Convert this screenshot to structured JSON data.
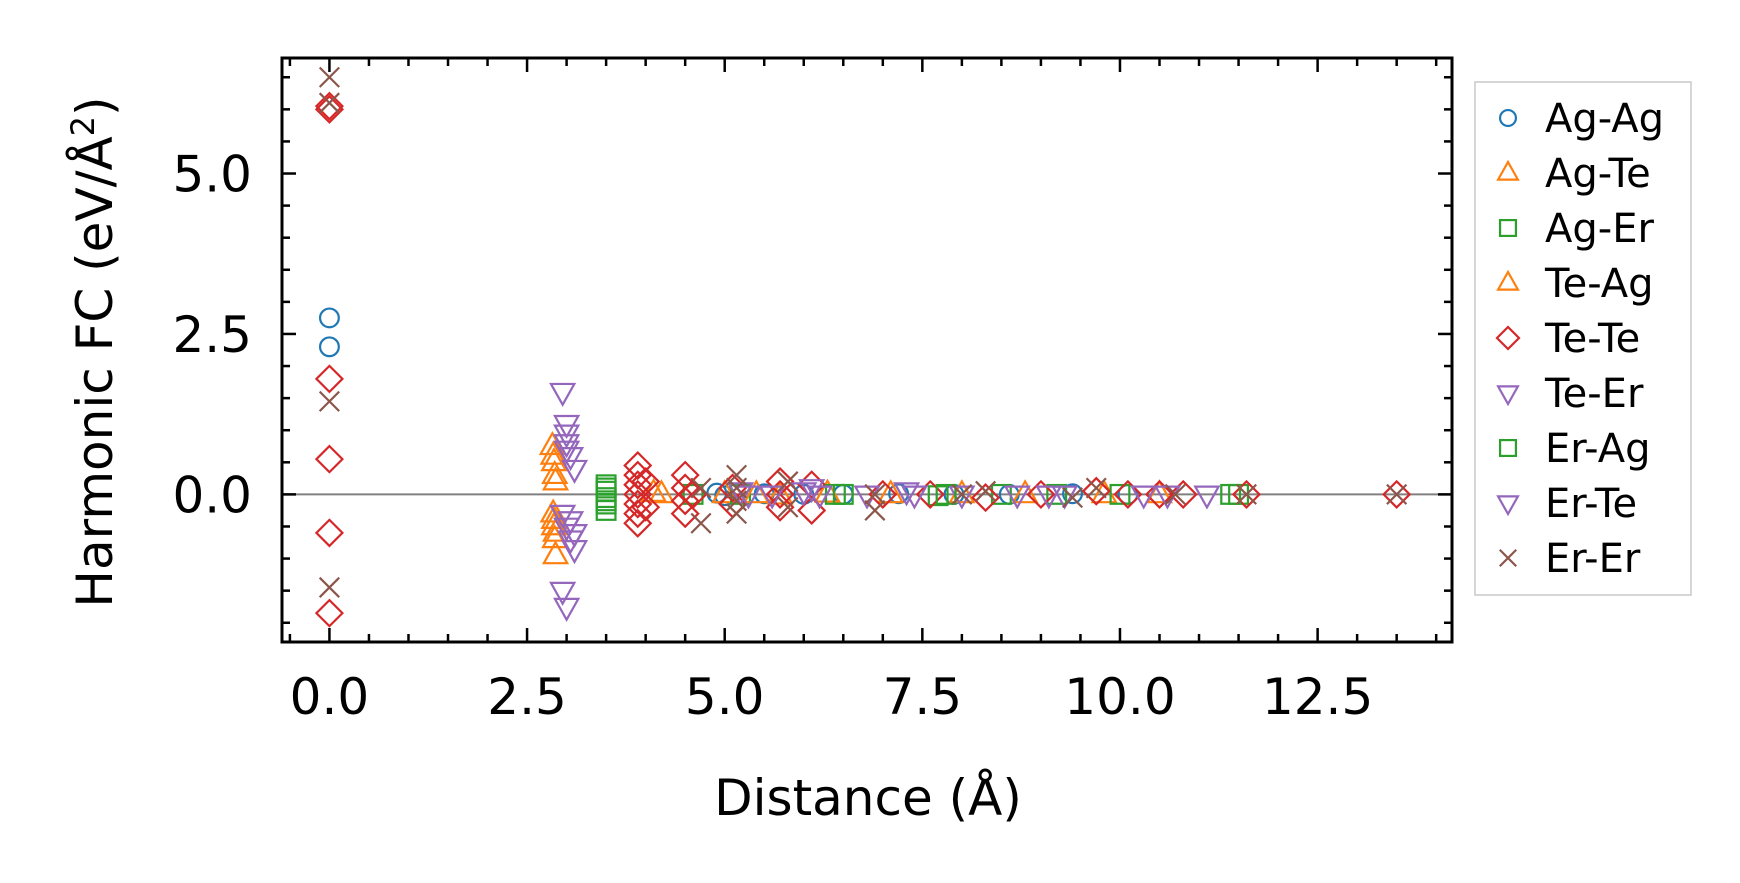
{
  "chart_data": {
    "type": "scatter",
    "title": "",
    "xlabel": "Distance (Å)",
    "ylabel_main": "Harmonic FC (eV/Å",
    "ylabel_sup": "2",
    "ylabel_close": ")",
    "xlim": [
      -0.6,
      14.2
    ],
    "ylim": [
      -2.3,
      6.8
    ],
    "xticks": [
      0.0,
      2.5,
      5.0,
      7.5,
      10.0,
      12.5
    ],
    "xtick_labels": [
      "0.0",
      "2.5",
      "5.0",
      "7.5",
      "10.0",
      "12.5"
    ],
    "yticks": [
      0.0,
      2.5,
      5.0
    ],
    "ytick_labels": [
      "0.0",
      "2.5",
      "5.0"
    ],
    "zero_line": 0,
    "legend_position": "outside-right",
    "series": [
      {
        "name": "Ag-Ag",
        "marker": "circle",
        "color": "#1f77b4",
        "points": [
          [
            0,
            2.75
          ],
          [
            0,
            2.3
          ],
          [
            4.9,
            0.02
          ],
          [
            5.0,
            -0.02
          ],
          [
            5.5,
            0.01
          ],
          [
            6.0,
            0.0
          ],
          [
            6.5,
            0.0
          ],
          [
            7.2,
            0.01
          ],
          [
            7.9,
            0.0
          ],
          [
            8.6,
            0.0
          ],
          [
            9.4,
            0.01
          ],
          [
            10.1,
            0.0
          ]
        ]
      },
      {
        "name": "Ag-Te",
        "marker": "triangle-up",
        "color": "#ff7f0e",
        "points": [
          [
            2.82,
            0.75
          ],
          [
            2.84,
            0.5
          ],
          [
            2.85,
            0.3
          ],
          [
            2.86,
            0.2
          ],
          [
            2.83,
            -0.3
          ],
          [
            2.84,
            -0.5
          ],
          [
            2.85,
            -0.7
          ],
          [
            2.86,
            -0.95
          ],
          [
            4.1,
            0.02
          ],
          [
            5.0,
            0.0
          ],
          [
            5.7,
            -0.02
          ],
          [
            6.3,
            0.01
          ],
          [
            7.1,
            0.0
          ],
          [
            8.0,
            0.0
          ],
          [
            8.8,
            0.0
          ],
          [
            9.8,
            0.0
          ],
          [
            10.5,
            0.0
          ]
        ]
      },
      {
        "name": "Ag-Er",
        "marker": "square",
        "color": "#2ca02c",
        "points": [
          [
            3.5,
            0.15
          ],
          [
            3.5,
            0.05
          ],
          [
            3.5,
            -0.05
          ],
          [
            3.5,
            -0.15
          ],
          [
            3.5,
            -0.25
          ],
          [
            4.6,
            0.0
          ],
          [
            5.2,
            0.0
          ],
          [
            6.5,
            0.0
          ],
          [
            7.7,
            -0.02
          ],
          [
            8.5,
            0.0
          ],
          [
            9.2,
            0.0
          ],
          [
            10.0,
            0.0
          ],
          [
            11.5,
            0.0
          ]
        ]
      },
      {
        "name": "Te-Ag",
        "marker": "triangle-up",
        "color": "#ff7f0e",
        "points": [
          [
            2.83,
            0.6
          ],
          [
            2.84,
            -0.4
          ],
          [
            2.86,
            -0.6
          ],
          [
            4.2,
            0.0
          ],
          [
            5.4,
            0.0
          ]
        ]
      },
      {
        "name": "Te-Te",
        "marker": "diamond",
        "color": "#d62728",
        "points": [
          [
            0,
            6.0
          ],
          [
            0,
            6.05
          ],
          [
            0,
            1.8
          ],
          [
            0,
            0.55
          ],
          [
            0,
            -0.6
          ],
          [
            0,
            -1.85
          ],
          [
            3.9,
            0.45
          ],
          [
            3.9,
            0.3
          ],
          [
            3.9,
            0.15
          ],
          [
            3.9,
            0.0
          ],
          [
            3.9,
            -0.15
          ],
          [
            3.9,
            -0.3
          ],
          [
            3.9,
            -0.45
          ],
          [
            4.0,
            0.2
          ],
          [
            4.0,
            -0.2
          ],
          [
            4.5,
            0.3
          ],
          [
            4.5,
            0.1
          ],
          [
            4.5,
            -0.1
          ],
          [
            4.5,
            -0.3
          ],
          [
            4.6,
            0.0
          ],
          [
            5.1,
            0.1
          ],
          [
            5.1,
            -0.15
          ],
          [
            5.7,
            0.2
          ],
          [
            5.7,
            0.0
          ],
          [
            5.7,
            -0.2
          ],
          [
            6.1,
            0.15
          ],
          [
            6.1,
            -0.25
          ],
          [
            7.0,
            0.0
          ],
          [
            7.6,
            0.0
          ],
          [
            8.3,
            -0.05
          ],
          [
            9.0,
            0.0
          ],
          [
            9.7,
            0.05
          ],
          [
            10.1,
            0.0
          ],
          [
            10.5,
            0.0
          ],
          [
            10.8,
            0.0
          ],
          [
            11.6,
            0.0
          ],
          [
            13.5,
            0.0
          ]
        ]
      },
      {
        "name": "Te-Er",
        "marker": "triangle-down",
        "color": "#9467bd",
        "points": [
          [
            2.95,
            1.6
          ],
          [
            3.0,
            1.1
          ],
          [
            3.0,
            0.95
          ],
          [
            3.0,
            0.8
          ],
          [
            3.05,
            0.6
          ],
          [
            3.1,
            0.4
          ],
          [
            2.95,
            -0.3
          ],
          [
            3.0,
            -0.5
          ],
          [
            3.05,
            -0.7
          ],
          [
            3.1,
            -0.85
          ],
          [
            2.95,
            -1.5
          ],
          [
            3.0,
            -1.75
          ],
          [
            5.2,
            0.05
          ],
          [
            5.6,
            0.0
          ],
          [
            6.1,
            0.1
          ],
          [
            6.8,
            0.0
          ],
          [
            7.3,
            0.05
          ],
          [
            8.0,
            0.0
          ],
          [
            8.7,
            0.0
          ],
          [
            9.3,
            0.0
          ],
          [
            10.3,
            0.0
          ],
          [
            11.1,
            0.0
          ]
        ]
      },
      {
        "name": "Er-Ag",
        "marker": "square",
        "color": "#2ca02c",
        "points": [
          [
            3.5,
            0.1
          ],
          [
            3.5,
            -0.1
          ],
          [
            6.4,
            0.0
          ],
          [
            7.8,
            0.0
          ],
          [
            11.4,
            0.0
          ]
        ]
      },
      {
        "name": "Er-Te",
        "marker": "triangle-down",
        "color": "#9467bd",
        "points": [
          [
            3.0,
            0.7
          ],
          [
            3.05,
            -0.4
          ],
          [
            3.1,
            -0.6
          ],
          [
            5.3,
            0.0
          ],
          [
            6.0,
            0.05
          ],
          [
            6.2,
            0.0
          ],
          [
            7.4,
            0.0
          ],
          [
            9.1,
            0.0
          ],
          [
            10.6,
            0.0
          ]
        ]
      },
      {
        "name": "Er-Er",
        "marker": "x",
        "color": "#8c564b",
        "points": [
          [
            0,
            6.5
          ],
          [
            0,
            6.1
          ],
          [
            0,
            1.45
          ],
          [
            0,
            -1.45
          ],
          [
            4.7,
            0.1
          ],
          [
            4.7,
            -0.45
          ],
          [
            5.15,
            0.3
          ],
          [
            5.15,
            0.1
          ],
          [
            5.15,
            -0.1
          ],
          [
            5.15,
            -0.3
          ],
          [
            5.8,
            0.2
          ],
          [
            5.8,
            -0.2
          ],
          [
            6.9,
            0.0
          ],
          [
            6.9,
            -0.25
          ],
          [
            8.0,
            0.0
          ],
          [
            8.3,
            0.05
          ],
          [
            9.4,
            -0.05
          ],
          [
            9.7,
            0.1
          ],
          [
            10.7,
            0.0
          ],
          [
            11.6,
            0.0
          ],
          [
            13.5,
            0.0
          ]
        ]
      }
    ]
  }
}
